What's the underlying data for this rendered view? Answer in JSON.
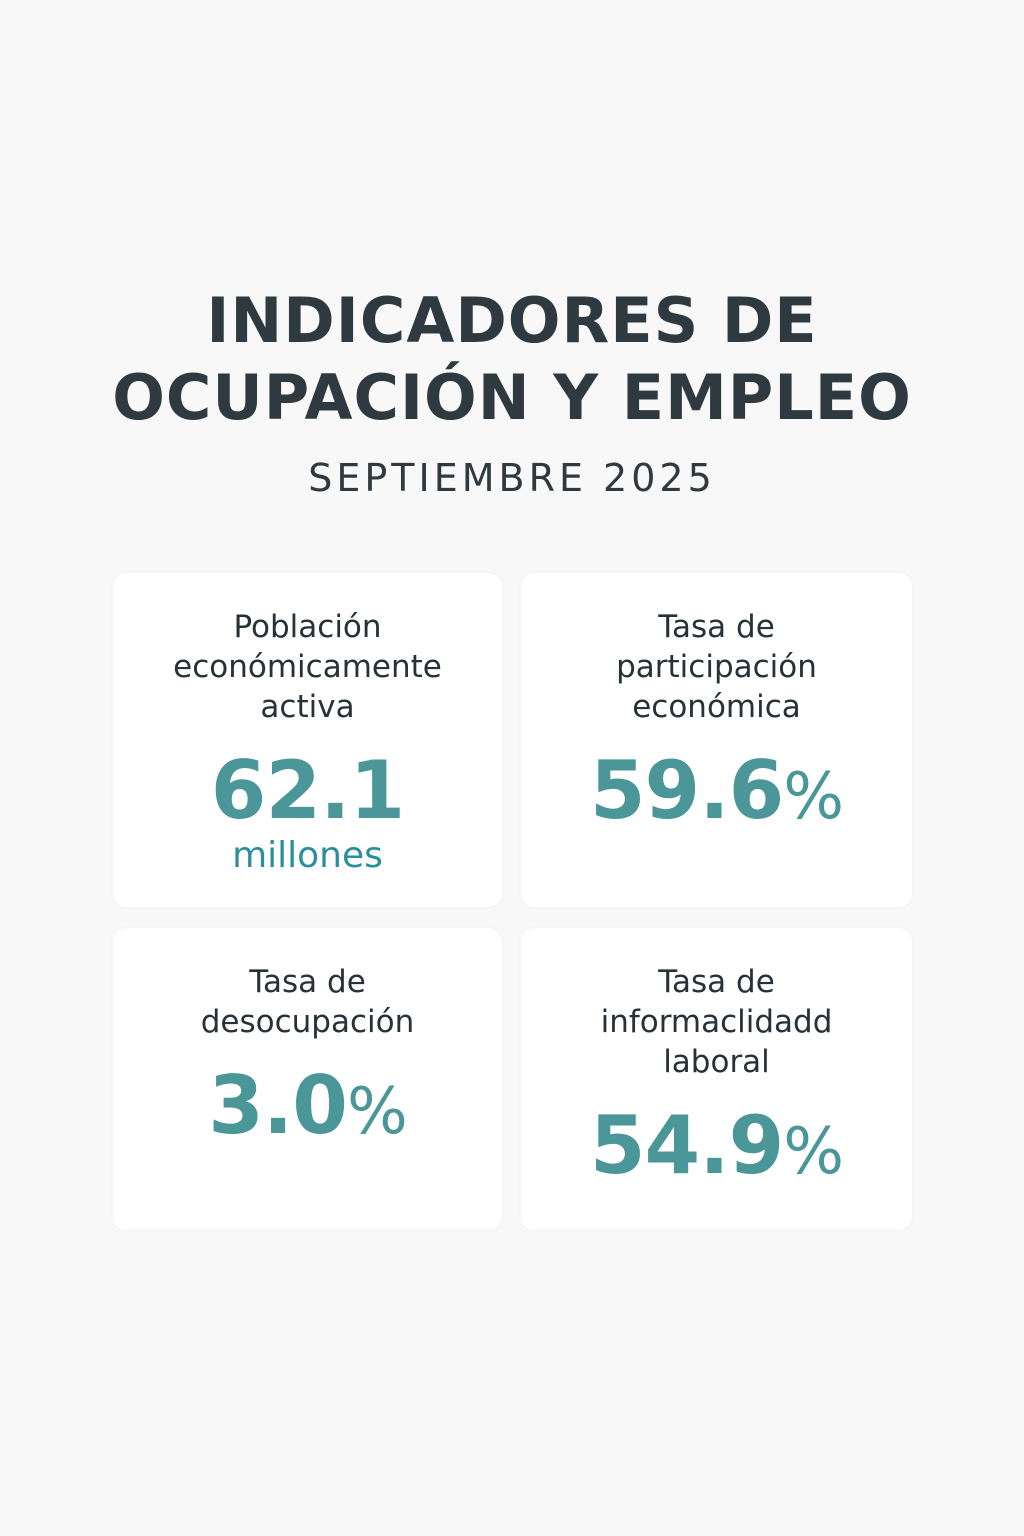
{
  "header": {
    "title_line1": "INDICADORES DE",
    "title_line2": "OCUPACIÓN Y EMPLEO",
    "subtitle": "SEPTIEMBRE 2025"
  },
  "cards": [
    {
      "label": [
        "Población",
        "económicamente",
        "activa"
      ],
      "value": "62.1",
      "unit": "millones"
    },
    {
      "label": [
        "Tasa de",
        "participación",
        "económica"
      ],
      "value": "59.6",
      "suffix": "%"
    },
    {
      "label": [
        "Tasa de",
        "desocupación"
      ],
      "value": "3.0",
      "suffix": "%"
    },
    {
      "label": [
        "Tasa de",
        "informaclidadd",
        "laboral"
      ],
      "value": "54.9",
      "suffix": "%"
    }
  ],
  "colors": {
    "accent": "#4a9699",
    "unit": "#2a8f9a",
    "text": "#263238",
    "background": "#f8f8f8",
    "card": "#ffffff"
  }
}
